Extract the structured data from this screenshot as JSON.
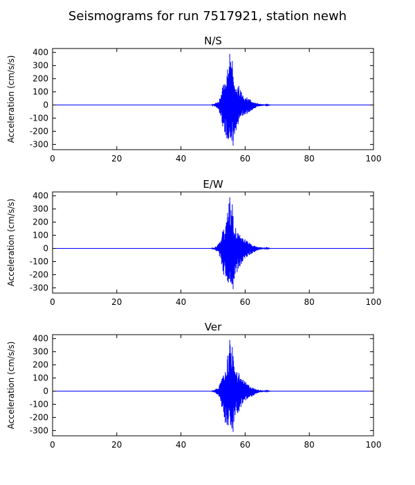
{
  "figure": {
    "title": "Seismograms for run 7517921, station newh"
  },
  "chart_data": [
    {
      "type": "line",
      "title": "N/S",
      "xlabel": "",
      "ylabel": "Acceleration (cm/s/s)",
      "xlim": [
        0,
        100
      ],
      "ylim": [
        -340,
        430
      ],
      "xticks": [
        0,
        20,
        40,
        60,
        80,
        100
      ],
      "yticks": [
        -300,
        -200,
        -100,
        0,
        100,
        200,
        300,
        400
      ],
      "grid": false,
      "color": "#0000ff",
      "series": [
        {
          "x": [
            0,
            49.5,
            50.5,
            51.5,
            52.5,
            53.2,
            53.8,
            54.5,
            55.2,
            55.6,
            56.0,
            56.7,
            57.3,
            58.0,
            58.8,
            59.6,
            60.5,
            61.5,
            62.5,
            63.5,
            64.5,
            66.0,
            68.0,
            100
          ],
          "y": [
            0,
            0,
            10,
            30,
            70,
            170,
            150,
            270,
            390,
            290,
            335,
            160,
            160,
            150,
            100,
            80,
            60,
            45,
            25,
            15,
            10,
            5,
            0,
            0
          ],
          "y_min": [
            0,
            0,
            -10,
            -30,
            -90,
            -200,
            -240,
            -260,
            -250,
            -270,
            -310,
            -230,
            -200,
            -160,
            -120,
            -90,
            -70,
            -50,
            -35,
            -20,
            -10,
            -5,
            0,
            0
          ]
        }
      ]
    },
    {
      "type": "line",
      "title": "E/W",
      "xlabel": "",
      "ylabel": "Acceleration (cm/s/s)",
      "xlim": [
        0,
        100
      ],
      "ylim": [
        -340,
        430
      ],
      "xticks": [
        0,
        20,
        40,
        60,
        80,
        100
      ],
      "yticks": [
        -300,
        -200,
        -100,
        0,
        100,
        200,
        300,
        400
      ],
      "grid": false,
      "color": "#0000ff",
      "series": [
        {
          "x": [
            0,
            49.5,
            50.5,
            51.5,
            52.5,
            53.2,
            53.8,
            54.5,
            55.2,
            55.6,
            56.0,
            56.7,
            57.3,
            58.0,
            58.8,
            59.6,
            60.5,
            61.5,
            62.5,
            63.5,
            64.5,
            66.0,
            68.0,
            100
          ],
          "y": [
            0,
            0,
            10,
            30,
            70,
            170,
            150,
            270,
            390,
            290,
            335,
            160,
            160,
            150,
            100,
            80,
            60,
            45,
            25,
            15,
            10,
            5,
            0,
            0
          ],
          "y_min": [
            0,
            0,
            -10,
            -30,
            -90,
            -200,
            -240,
            -260,
            -250,
            -270,
            -310,
            -230,
            -200,
            -160,
            -120,
            -90,
            -70,
            -50,
            -35,
            -20,
            -10,
            -5,
            0,
            0
          ]
        }
      ]
    },
    {
      "type": "line",
      "title": "Ver",
      "xlabel": "",
      "ylabel": "Acceleration (cm/s/s)",
      "xlim": [
        0,
        100
      ],
      "ylim": [
        -340,
        430
      ],
      "xticks": [
        0,
        20,
        40,
        60,
        80,
        100
      ],
      "yticks": [
        -300,
        -200,
        -100,
        0,
        100,
        200,
        300,
        400
      ],
      "grid": false,
      "color": "#0000ff",
      "series": [
        {
          "x": [
            0,
            49.5,
            50.5,
            51.5,
            52.5,
            53.2,
            53.8,
            54.5,
            55.2,
            55.6,
            56.0,
            56.7,
            57.3,
            58.0,
            58.8,
            59.6,
            60.5,
            61.5,
            62.5,
            63.5,
            64.5,
            66.0,
            68.0,
            100
          ],
          "y": [
            0,
            0,
            10,
            30,
            70,
            170,
            150,
            270,
            390,
            290,
            335,
            160,
            160,
            150,
            100,
            80,
            60,
            45,
            25,
            15,
            10,
            5,
            0,
            0
          ],
          "y_min": [
            0,
            0,
            -10,
            -30,
            -90,
            -200,
            -240,
            -260,
            -250,
            -270,
            -310,
            -230,
            -200,
            -160,
            -120,
            -90,
            -70,
            -50,
            -35,
            -20,
            -10,
            -5,
            0,
            0
          ]
        }
      ]
    }
  ]
}
